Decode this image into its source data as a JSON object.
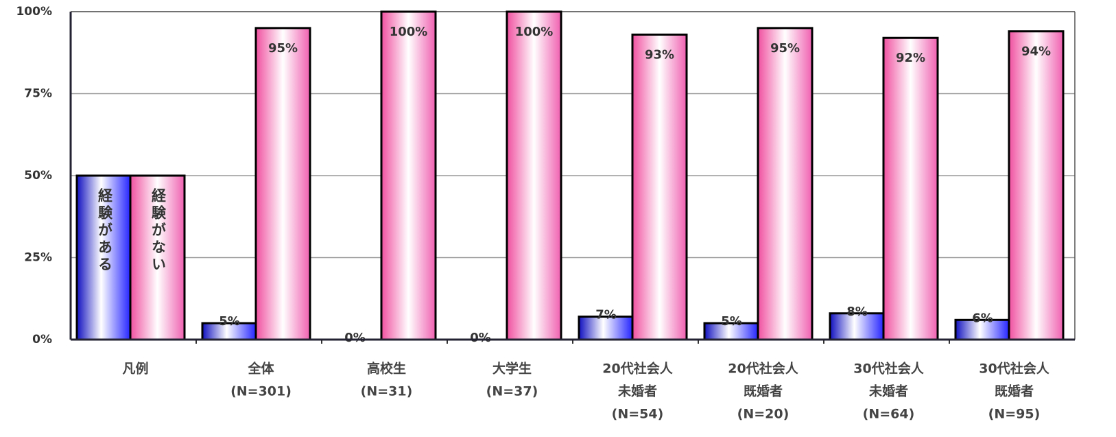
{
  "chart_data": {
    "type": "bar",
    "categories": [
      [
        "凡例"
      ],
      [
        "全体",
        "(N=301)"
      ],
      [
        "高校生",
        "(N=31)"
      ],
      [
        "大学生",
        "(N=37)"
      ],
      [
        "20代社会人",
        "未婚者",
        "(N=54)"
      ],
      [
        "20代社会人",
        "既婚者",
        "(N=20)"
      ],
      [
        "30代社会人",
        "未婚者",
        "(N=64)"
      ],
      [
        "30代社会人",
        "既婚者",
        "(N=95)"
      ]
    ],
    "series": [
      {
        "name": "経験がある",
        "color": "#2020e0",
        "values": [
          50,
          5,
          0,
          0,
          7,
          5,
          8,
          6
        ],
        "value_labels": [
          null,
          "5%",
          "0%",
          "0%",
          "7%",
          "5%",
          "8%",
          "6%"
        ]
      },
      {
        "name": "経験がない",
        "color": "#f060a8",
        "values": [
          50,
          95,
          100,
          100,
          93,
          95,
          92,
          94
        ],
        "value_labels": [
          null,
          "95%",
          "100%",
          "100%",
          "93%",
          "95%",
          "92%",
          "94%"
        ]
      }
    ],
    "ylim": [
      0,
      100
    ],
    "yticks": [
      {
        "value": 0,
        "label": "0%"
      },
      {
        "value": 25,
        "label": "25%"
      },
      {
        "value": 50,
        "label": "50%"
      },
      {
        "value": 75,
        "label": "75%"
      },
      {
        "value": 100,
        "label": "100%"
      }
    ],
    "grid": true
  }
}
